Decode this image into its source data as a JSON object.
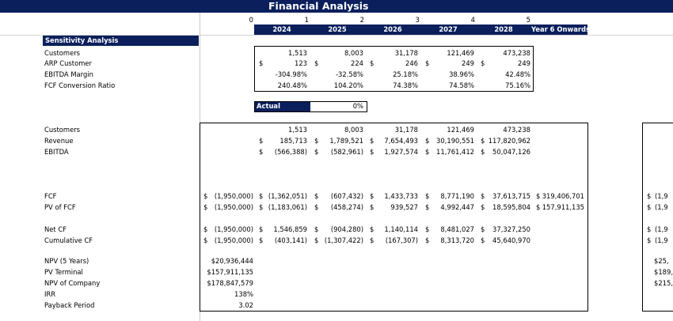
{
  "title": "Financial Analysis",
  "period_numbers": [
    "0",
    "1",
    "2",
    "3",
    "4",
    "5"
  ],
  "year_headers": [
    "2024",
    "2025",
    "2026",
    "2027",
    "2028",
    "Year 6 Onwards"
  ],
  "sensitivity": {
    "header": "Sensitivity Analysis",
    "rows": [
      {
        "label": "Customers",
        "values": [
          "1,513",
          "8,003",
          "31,178",
          "121,469",
          "473,238"
        ]
      },
      {
        "label": "ARP Customer",
        "values": [
          "123",
          "224",
          "246",
          "249",
          "249"
        ]
      },
      {
        "label": "EBITDA Margin",
        "values": [
          "-304.98%",
          "-32.58%",
          "25.18%",
          "38.96%",
          "42.48%"
        ]
      },
      {
        "label": "FCF Conversion Ratio",
        "values": [
          "240.48%",
          "104.20%",
          "74.38%",
          "74.58%",
          "75.16%"
        ]
      }
    ]
  },
  "actual": {
    "label": "Actual",
    "value": "0%",
    "progress": 0
  },
  "currency_symbol": "$",
  "operations": {
    "rows": [
      {
        "label": "Customers",
        "values": [
          "1,513",
          "8,003",
          "31,178",
          "121,469",
          "473,238"
        ]
      },
      {
        "label": "Revenue",
        "values": [
          "185,713",
          "1,789,521",
          "7,654,493",
          "30,190,551",
          "117,820,962"
        ]
      },
      {
        "label": "EBITDA",
        "values": [
          "(566,388)",
          "(582,961)",
          "1,927,574",
          "11,761,412",
          "50,047,126"
        ]
      }
    ]
  },
  "cashflow": {
    "rows": [
      {
        "label": "FCF",
        "y0": "(1,950,000)",
        "values": [
          "(1,362,051)",
          "(607,432)",
          "1,433,733",
          "8,771,190",
          "37,613,715",
          "319,406,701"
        ],
        "right_partial": "(1,9"
      },
      {
        "label": "PV of FCF",
        "y0": "(1,950,000)",
        "values": [
          "(1,183,061)",
          "(458,274)",
          "939,527",
          "4,992,447",
          "18,595,804",
          "157,911,135"
        ],
        "right_partial": "(1,9"
      },
      {
        "label": "Net CF",
        "y0": "(1,950,000)",
        "values": [
          "1,546,859",
          "(904,280)",
          "1,140,114",
          "8,481,027",
          "37,327,250"
        ],
        "right_partial": "(1,9"
      },
      {
        "label": "Cumulative CF",
        "y0": "(1,950,000)",
        "values": [
          "(403,141)",
          "(1,307,422)",
          "(167,307)",
          "8,313,720",
          "45,640,970"
        ],
        "right_partial": "(1,9"
      }
    ]
  },
  "summary": [
    {
      "label": "NPV (5 Years)",
      "value": "$20,936,444",
      "right_partial": "$25,"
    },
    {
      "label": "PV Terminal",
      "value": "$157,911,135",
      "right_partial": "$189,"
    },
    {
      "label": "NPV of Company",
      "value": "$178,847,579",
      "right_partial": "$215,"
    },
    {
      "label": "IRR",
      "value": "138%",
      "right_partial": ""
    },
    {
      "label": "Payback Period",
      "value": "3.02",
      "right_partial": ""
    }
  ],
  "colors": {
    "navy": "#0a1f5c",
    "white": "#ffffff"
  }
}
